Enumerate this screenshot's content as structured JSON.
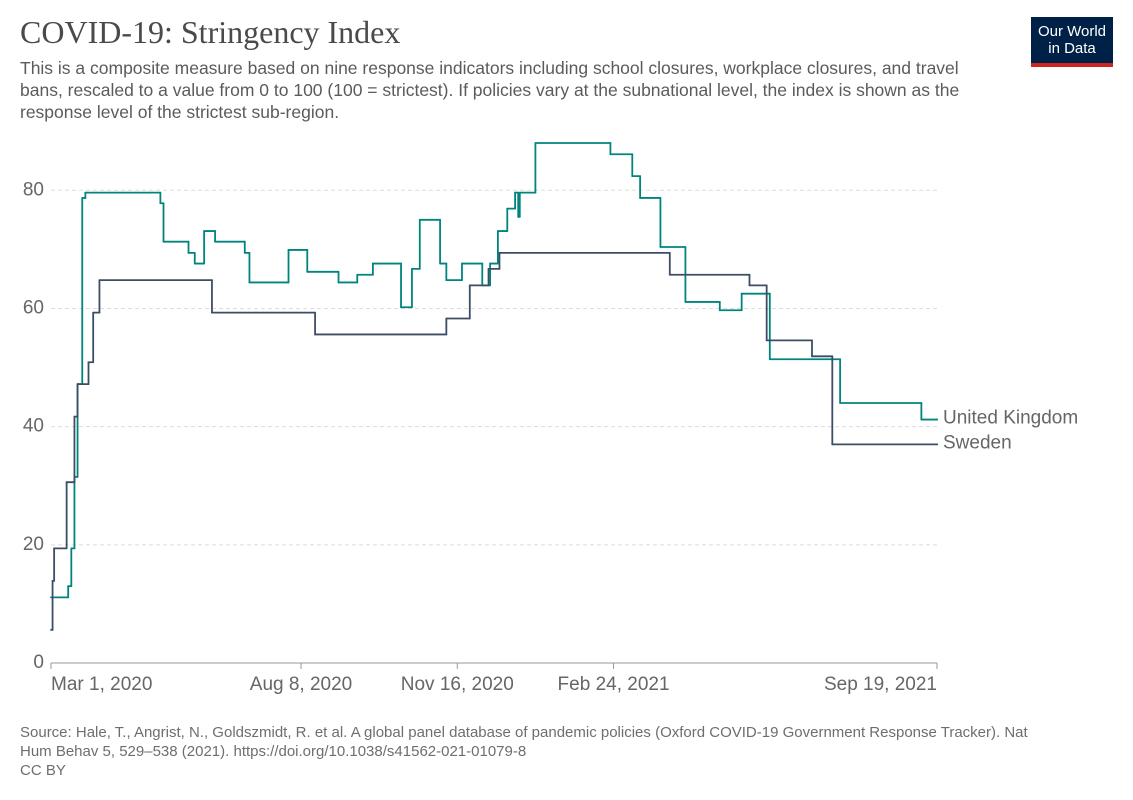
{
  "chart_data": {
    "type": "line",
    "title": "COVID-19: Stringency Index",
    "subtitle": "This is a composite measure based on nine response indicators including school closures, workplace closures, and travel bans, rescaled to a value from 0 to 100 (100 = strictest). If policies vary at the subnational level, the index is shown as the response level of the strictest sub-region.",
    "source": "Source: Hale, T., Angrist, N., Goldszmidt, R. et al. A global panel database of pandemic policies (Oxford COVID-19 Government Response Tracker). Nat Hum Behav 5, 529–538 (2021). https://doi.org/10.1038/s41562-021-01079-8",
    "license": "CC BY",
    "logo": [
      "Our World",
      "in Data"
    ],
    "xlim": [
      "2020-03-01",
      "2021-09-19"
    ],
    "xticks": [
      {
        "value": "2020-03-01",
        "label": "Mar 1, 2020"
      },
      {
        "value": "2020-08-08",
        "label": "Aug 8, 2020"
      },
      {
        "value": "2020-11-16",
        "label": "Nov 16, 2020"
      },
      {
        "value": "2021-02-24",
        "label": "Feb 24, 2021"
      },
      {
        "value": "2021-09-19",
        "label": "Sep 19, 2021"
      }
    ],
    "ylim": [
      0,
      88
    ],
    "yticks": [
      0,
      20,
      40,
      60,
      80
    ],
    "grid": true,
    "step": true,
    "series": [
      {
        "name": "United Kingdom",
        "color": "#00847e",
        "x": [
          "2020-03-01",
          "2020-03-12",
          "2020-03-14",
          "2020-03-16",
          "2020-03-18",
          "2020-03-21",
          "2020-03-23",
          "2020-05-10",
          "2020-05-12",
          "2020-05-28",
          "2020-06-01",
          "2020-06-07",
          "2020-06-14",
          "2020-07-03",
          "2020-07-06",
          "2020-07-31",
          "2020-08-12",
          "2020-09-01",
          "2020-09-13",
          "2020-09-23",
          "2020-10-11",
          "2020-10-18",
          "2020-10-23",
          "2020-11-05",
          "2020-11-09",
          "2020-11-19",
          "2020-12-02",
          "2020-12-07",
          "2020-12-12",
          "2020-12-18",
          "2020-12-23",
          "2020-12-25",
          "2020-12-26",
          "2021-01-05",
          "2021-02-22",
          "2021-03-08",
          "2021-03-13",
          "2021-03-26",
          "2021-04-11",
          "2021-05-03",
          "2021-05-17",
          "2021-06-04",
          "2021-07-19",
          "2021-09-09",
          "2021-09-19"
        ],
        "values": [
          11.1,
          13.0,
          19.4,
          31.5,
          47.2,
          78.7,
          79.6,
          77.8,
          71.3,
          69.4,
          67.6,
          73.1,
          71.3,
          69.4,
          64.4,
          69.9,
          66.2,
          64.4,
          65.7,
          67.6,
          60.2,
          66.7,
          75.0,
          67.6,
          64.8,
          67.6,
          63.9,
          67.6,
          73.1,
          76.9,
          79.6,
          75.5,
          79.6,
          88.0,
          86.1,
          82.4,
          78.7,
          70.4,
          61.1,
          59.7,
          62.5,
          51.4,
          44.0,
          41.2,
          41.2
        ]
      },
      {
        "name": "Sweden",
        "color": "#3c4e66",
        "x": [
          "2020-03-01",
          "2020-03-02",
          "2020-03-03",
          "2020-03-11",
          "2020-03-16",
          "2020-03-18",
          "2020-03-25",
          "2020-03-28",
          "2020-04-01",
          "2020-06-12",
          "2020-08-17",
          "2020-11-09",
          "2020-11-24",
          "2020-12-06",
          "2020-12-13",
          "2021-04-01",
          "2021-05-22",
          "2021-06-02",
          "2021-07-01",
          "2021-07-14",
          "2021-09-19"
        ],
        "values": [
          5.6,
          13.9,
          19.4,
          30.6,
          41.7,
          47.2,
          50.9,
          59.3,
          64.8,
          59.3,
          55.6,
          58.3,
          63.9,
          66.7,
          69.4,
          65.7,
          63.9,
          54.6,
          51.9,
          37.0,
          37.0
        ]
      }
    ]
  }
}
